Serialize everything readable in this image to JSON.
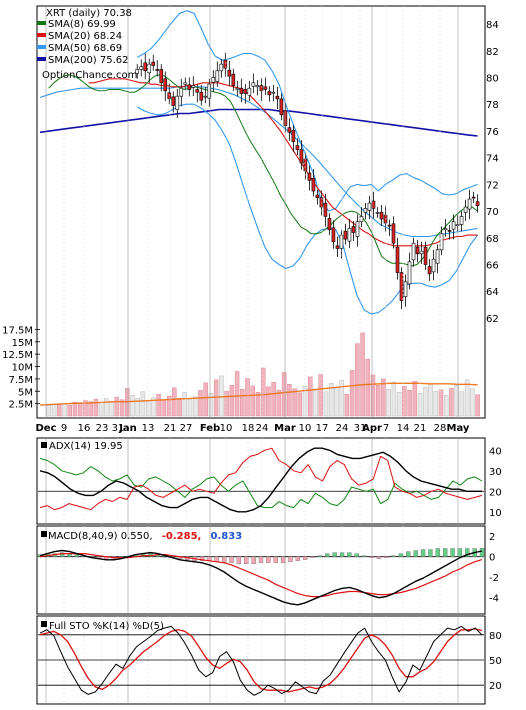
{
  "chart_data": {
    "type": "line",
    "symbol": "XRT",
    "title": "XRT (daily) 70.38",
    "source": "OptionChance.com",
    "colors": {
      "sma8": "#117711",
      "sma20": "#dd1111",
      "sma50": "#3399ee",
      "sma200": "#1111aa",
      "up_candle": "#ffffff",
      "down_candle": "#dd2222",
      "doji": "#aa66dd",
      "volume_up": "#e8e8e8",
      "volume_down": "#f0b3bd",
      "volume_ma": "#ee7722",
      "bollinger": "#ddcc33",
      "adx": "#000000",
      "plus_di": "#118811",
      "minus_di": "#dd1111",
      "macd": "#000000",
      "signal": "#dd1111",
      "hist_pos": "#66cc88",
      "hist_neg": "#f0a6b4",
      "stoch_k": "#000000",
      "stoch_d": "#dd1111"
    },
    "price_panel": {
      "legend": [
        {
          "label": "XRT (daily) 70.38",
          "color": "#000000"
        },
        {
          "label": "SMA(8) 69.99",
          "color": "#117711"
        },
        {
          "label": "SMA(20) 68.24",
          "color": "#dd1111"
        },
        {
          "label": "SMA(50) 68.69",
          "color": "#3399ee"
        },
        {
          "label": "SMA(200) 75.62",
          "color": "#1111aa"
        }
      ],
      "ylim": [
        60.5,
        85.2
      ],
      "yticks": [
        "84",
        "82",
        "80",
        "78",
        "76",
        "74",
        "72",
        "70",
        "68",
        "66",
        "64",
        "62"
      ],
      "closes": [
        80.6,
        80.8,
        80.5,
        81.0,
        80.9,
        80.6,
        79.6,
        79.0,
        78.4,
        77.9,
        78.6,
        79.2,
        79.6,
        79.1,
        79.4,
        78.9,
        78.3,
        78.6,
        79.5,
        80.0,
        80.5,
        81.0,
        80.7,
        80.1,
        79.4,
        79.2,
        78.8,
        78.8,
        79.2,
        79.6,
        79.4,
        79.0,
        79.1,
        78.7,
        78.9,
        78.4,
        77.2,
        76.4,
        75.9,
        75.2,
        74.6,
        73.6,
        73.0,
        72.3,
        71.5,
        71.0,
        70.3,
        69.6,
        68.6,
        67.7,
        67.2,
        68.2,
        67.9,
        68.7,
        68.4,
        69.2,
        69.6,
        70.2,
        70.6,
        70.2,
        69.9,
        69.4,
        69.1,
        68.9,
        67.6,
        65.4,
        63.3,
        64.7,
        66.2,
        67.6,
        66.8,
        67.0,
        66.0,
        65.3,
        66.4,
        67.1,
        68.3,
        68.7,
        68.5,
        69.2,
        69.0,
        69.6,
        70.3,
        70.9,
        71.0,
        70.4
      ],
      "sma8": [
        79.2,
        79.6,
        79.9,
        80.1,
        80.2,
        80.1,
        79.9,
        79.6,
        79.3,
        79.1,
        79.0,
        79.0,
        79.1,
        79.1,
        79.1,
        79.0,
        78.9,
        78.9,
        79.1,
        79.4,
        79.8,
        80.1,
        80.2,
        80.1,
        79.8,
        79.5,
        79.2,
        79.1,
        79.2,
        79.3,
        79.2,
        79.1,
        79.0,
        78.9,
        78.8,
        78.6,
        78.2,
        77.5,
        76.7,
        75.9,
        75.2,
        74.6,
        74.0,
        73.3,
        72.6,
        71.9,
        71.1,
        70.5,
        69.8,
        69.3,
        68.8,
        68.6,
        68.3,
        68.3,
        68.4,
        68.7,
        69.0,
        69.4,
        69.7,
        69.9,
        70.0,
        69.9,
        69.6,
        69.1,
        68.4,
        67.5,
        66.6,
        66.3,
        66.1,
        66.1,
        66.1,
        66.0,
        65.9,
        66.0,
        66.4,
        66.9,
        67.6,
        68.2,
        68.6,
        69.0,
        69.4,
        69.8,
        70.1,
        70.3,
        70.3,
        70.0
      ],
      "sma20": [
        79.6,
        79.6,
        79.7,
        79.8,
        79.9,
        79.9,
        79.9,
        79.9,
        79.8,
        79.7,
        79.6,
        79.6,
        79.5,
        79.5,
        79.4,
        79.4,
        79.3,
        79.3,
        79.3,
        79.4,
        79.4,
        79.5,
        79.6,
        79.6,
        79.6,
        79.6,
        79.5,
        79.4,
        79.3,
        79.2,
        79.0,
        78.7,
        78.3,
        77.9,
        77.5,
        77.0,
        76.5,
        76.0,
        75.4,
        74.8,
        74.2,
        73.6,
        73.0,
        72.4,
        71.8,
        71.3,
        70.8,
        70.3,
        70.0,
        69.7,
        69.4,
        69.1,
        68.8,
        68.5,
        68.3,
        68.0,
        67.8,
        67.6,
        67.5,
        67.4,
        67.4,
        67.4,
        67.4,
        67.4,
        67.4,
        67.4,
        67.5,
        67.6,
        67.8,
        67.9,
        68.0,
        68.1,
        68.1,
        68.2,
        68.2,
        68.2
      ],
      "sma50": [
        78.5,
        78.7,
        78.9,
        79.0,
        79.1,
        79.2,
        79.2,
        79.2,
        79.2,
        79.2,
        79.2,
        79.2,
        79.2,
        79.2,
        79.2,
        79.2,
        79.2,
        79.3,
        79.3,
        79.3,
        79.3,
        79.2,
        79.1,
        78.9,
        78.7,
        78.4,
        78.1,
        77.7,
        77.3,
        76.8,
        76.3,
        75.8,
        75.2,
        74.6,
        74.0,
        73.3,
        72.6,
        71.9,
        71.2,
        70.6,
        70.0,
        69.5,
        69.0,
        68.7,
        68.4,
        68.2,
        68.1,
        68.1,
        68.1,
        68.2,
        68.3,
        68.4,
        68.5,
        68.6,
        68.7
      ],
      "sma200": [
        75.9,
        76.0,
        76.1,
        76.2,
        76.3,
        76.4,
        76.5,
        76.6,
        76.7,
        76.8,
        76.9,
        77.0,
        77.1,
        77.2,
        77.3,
        77.3,
        77.4,
        77.5,
        77.6,
        77.6,
        77.6,
        77.6,
        77.6,
        77.6,
        77.5,
        77.5,
        77.4,
        77.3,
        77.2,
        77.1,
        77.0,
        76.9,
        76.8,
        76.7,
        76.6,
        76.5,
        76.4,
        76.3,
        76.2,
        76.1,
        76.0,
        75.9,
        75.8,
        75.7,
        75.62
      ],
      "bb_upper": [
        81.5,
        81.8,
        82.2,
        82.8,
        83.5,
        84.2,
        84.8,
        85.0,
        84.8,
        83.7,
        82.5,
        81.6,
        81.3,
        81.4,
        81.6,
        81.8,
        81.8,
        81.6,
        81.3,
        80.5,
        79.5,
        77.9,
        76.5,
        75.2,
        73.9,
        72.6,
        70.7,
        70.0,
        70.2,
        71.0,
        71.8,
        72.0,
        71.9,
        72.0,
        71.5,
        72.0,
        72.3,
        72.7,
        72.8,
        72.5,
        72.3,
        72.0,
        71.7,
        71.3,
        71.2,
        71.3,
        71.6,
        71.8,
        72.0
      ],
      "bb_lower": [
        77.8,
        77.5,
        77.3,
        77.2,
        77.3,
        77.6,
        77.9,
        78.0,
        78.0,
        77.7,
        77.3,
        76.8,
        76.0,
        75.0,
        73.5,
        71.8,
        70.2,
        68.7,
        67.3,
        66.4,
        66.0,
        65.7,
        65.9,
        66.5,
        67.5,
        68.2,
        68.6,
        68.7,
        68.6,
        67.5,
        65.5,
        63.7,
        62.6,
        62.3,
        62.4,
        62.8,
        63.3,
        64.0,
        64.5,
        64.6,
        64.6,
        64.4,
        64.3,
        64.5,
        64.8,
        65.5,
        66.5,
        67.5,
        68.2
      ]
    },
    "volume": {
      "yticks": [
        "17.5M",
        "15M",
        "12.5M",
        "10M",
        "7.5M",
        "5M",
        "2.5M"
      ],
      "ylim": [
        0,
        19000000
      ],
      "values": [
        2.1,
        2.4,
        2.3,
        2.6,
        2.2,
        2.8,
        2.5,
        3.1,
        2.9,
        3.4,
        2.7,
        3.5,
        3.0,
        3.8,
        3.3,
        5.6,
        4.2,
        3.6,
        4.9,
        3.1,
        3.7,
        4.4,
        3.2,
        4.0,
        5.7,
        3.6,
        4.8,
        3.3,
        3.9,
        5.2,
        6.7,
        4.6,
        7.3,
        8.1,
        5.0,
        6.2,
        9.0,
        5.4,
        7.6,
        6.1,
        4.8,
        9.7,
        5.9,
        6.8,
        5.2,
        8.8,
        6.4,
        5.5,
        4.7,
        6.0,
        7.9,
        5.1,
        8.4,
        4.9,
        6.6,
        5.7,
        7.2,
        4.4,
        9.2,
        14.6,
        16.8,
        11.5,
        8.3,
        6.2,
        7.5,
        5.4,
        6.9,
        4.8,
        6.0,
        5.2,
        7.0,
        4.6,
        5.8,
        6.4,
        5.0,
        5.3,
        4.2,
        5.6,
        6.2,
        4.9,
        7.3,
        5.5,
        4.3
      ],
      "ma": [
        2.2,
        2.3,
        2.4,
        2.5,
        2.6,
        2.6,
        2.7,
        2.8,
        2.9,
        2.9,
        3.0,
        3.1,
        3.2,
        3.3,
        3.4,
        3.5,
        3.6,
        3.7,
        3.8,
        3.9,
        4.0,
        4.1,
        4.2,
        4.3,
        4.5,
        4.7,
        4.9,
        5.1,
        5.3,
        5.5,
        5.7,
        5.9,
        6.1,
        6.3,
        6.4,
        6.5,
        6.6,
        6.6,
        6.6,
        6.6,
        6.5,
        6.5,
        6.5,
        6.4,
        6.4,
        6.3
      ]
    },
    "x_labels": [
      "Dec",
      "9",
      "16",
      "23",
      "31",
      "Jan",
      "13",
      "21",
      "27",
      "Feb",
      "10",
      "18",
      "24",
      "Mar",
      "10",
      "17",
      "24",
      "31",
      "Apr",
      "7",
      "14",
      "21",
      "28",
      "May"
    ],
    "x_bold": [
      "Dec",
      "Jan",
      "Feb",
      "Mar",
      "Apr",
      "May"
    ],
    "adx_panel": {
      "legend": "ADX(14) 19.95",
      "yticks": [
        "40",
        "30",
        "20",
        "10"
      ],
      "ylim": [
        5,
        45
      ],
      "adx": [
        30,
        29,
        27,
        24,
        21,
        19,
        18,
        18,
        20,
        23,
        25,
        24,
        22,
        20,
        17,
        15,
        13,
        12,
        12,
        14,
        16,
        17,
        17,
        15,
        13,
        11,
        10,
        10,
        11,
        13,
        17,
        22,
        27,
        32,
        36,
        39,
        41,
        41,
        40,
        38,
        37,
        36,
        36,
        37,
        38,
        39,
        37,
        34,
        30,
        27,
        25,
        24,
        23,
        22,
        21,
        21,
        20,
        20,
        20
      ],
      "plus_di": [
        36,
        35,
        33,
        30,
        29,
        28,
        29,
        32,
        30,
        27,
        25,
        26,
        28,
        23,
        22,
        26,
        27,
        25,
        23,
        20,
        17,
        21,
        23,
        26,
        27,
        23,
        20,
        23,
        25,
        19,
        13,
        12,
        12,
        15,
        13,
        12,
        16,
        14,
        19,
        17,
        14,
        13,
        16,
        22,
        21,
        20,
        21,
        14,
        16,
        24,
        21,
        19,
        20,
        18,
        16,
        17,
        21,
        25,
        23,
        26,
        27,
        25
      ],
      "minus_di": [
        12,
        13,
        11,
        12,
        14,
        13,
        12,
        11,
        14,
        16,
        15,
        17,
        16,
        22,
        23,
        21,
        18,
        17,
        19,
        21,
        23,
        20,
        21,
        20,
        19,
        24,
        28,
        29,
        34,
        37,
        38,
        40,
        41,
        35,
        33,
        30,
        29,
        33,
        27,
        25,
        32,
        35,
        33,
        26,
        23,
        24,
        26,
        37,
        35,
        22,
        20,
        19,
        17,
        18,
        20,
        21,
        19,
        18,
        17,
        16,
        17,
        18
      ]
    },
    "macd_panel": {
      "legend_prefix": "MACD(8,40,9) 0.550,",
      "legend_signal": "-0.285,",
      "legend_hist": "0.833",
      "yticks": [
        "2",
        "0",
        "-2",
        "-4"
      ],
      "ylim": [
        -5.4,
        2.8
      ],
      "macd": [
        0.1,
        0.3,
        0.5,
        0.6,
        0.5,
        0.3,
        0.1,
        -0.1,
        -0.2,
        -0.3,
        -0.3,
        -0.2,
        0.0,
        0.2,
        0.3,
        0.4,
        0.3,
        0.1,
        -0.1,
        -0.3,
        -0.4,
        -0.5,
        -0.6,
        -0.8,
        -1.1,
        -1.5,
        -2.0,
        -2.5,
        -2.9,
        -3.2,
        -3.5,
        -3.8,
        -4.1,
        -4.4,
        -4.6,
        -4.7,
        -4.5,
        -4.2,
        -3.9,
        -3.6,
        -3.3,
        -3.1,
        -3.0,
        -3.2,
        -3.5,
        -3.8,
        -4.0,
        -3.9,
        -3.6,
        -3.2,
        -2.8,
        -2.4,
        -2.1,
        -1.7,
        -1.3,
        -0.9,
        -0.5,
        -0.1,
        0.2,
        0.4,
        0.55
      ],
      "signal": [
        0.0,
        0.1,
        0.2,
        0.3,
        0.3,
        0.3,
        0.3,
        0.2,
        0.1,
        0.0,
        -0.1,
        -0.1,
        -0.1,
        0.0,
        0.1,
        0.1,
        0.2,
        0.2,
        0.1,
        0.0,
        -0.1,
        -0.2,
        -0.3,
        -0.4,
        -0.5,
        -0.6,
        -0.8,
        -1.1,
        -1.4,
        -1.7,
        -2.0,
        -2.3,
        -2.7,
        -3.0,
        -3.3,
        -3.6,
        -3.8,
        -3.9,
        -3.9,
        -3.8,
        -3.6,
        -3.5,
        -3.4,
        -3.4,
        -3.5,
        -3.6,
        -3.7,
        -3.7,
        -3.6,
        -3.5,
        -3.3,
        -3.1,
        -2.8,
        -2.5,
        -2.2,
        -1.9,
        -1.5,
        -1.2,
        -0.8,
        -0.5,
        -0.285
      ],
      "hist": [
        0.2,
        0.3,
        0.3,
        0.4,
        0.3,
        0.2,
        0.1,
        -0.1,
        -0.2,
        -0.3,
        -0.3,
        -0.2,
        0.0,
        0.2,
        0.3,
        0.3,
        0.2,
        0.0,
        -0.1,
        -0.2,
        -0.3,
        -0.4,
        -0.4,
        -0.4,
        -0.5,
        -0.6,
        -0.6,
        -0.7,
        -0.7,
        -0.7,
        -0.6,
        -0.6,
        -0.6,
        -0.6,
        -0.5,
        -0.4,
        -0.3,
        -0.1,
        0.1,
        0.3,
        0.4,
        0.4,
        0.4,
        0.3,
        0.1,
        -0.1,
        -0.2,
        -0.1,
        0.1,
        0.3,
        0.5,
        0.6,
        0.7,
        0.7,
        0.8,
        0.8,
        0.8,
        0.8,
        0.8,
        0.8,
        0.833
      ]
    },
    "sto_panel": {
      "legend": "Full STO %K(14) %D(5)",
      "yticks": [
        "80",
        "50",
        "20"
      ],
      "ylim": [
        0,
        100
      ],
      "k": [
        82,
        86,
        79,
        60,
        42,
        28,
        14,
        9,
        12,
        22,
        34,
        45,
        40,
        55,
        66,
        72,
        78,
        85,
        88,
        90,
        82,
        70,
        55,
        38,
        30,
        35,
        54,
        60,
        48,
        26,
        14,
        8,
        12,
        20,
        16,
        10,
        14,
        24,
        18,
        12,
        10,
        25,
        32,
        45,
        58,
        70,
        82,
        88,
        72,
        60,
        50,
        30,
        12,
        24,
        44,
        38,
        55,
        72,
        80,
        88,
        86,
        90,
        84,
        88,
        80
      ],
      "d": [
        80,
        82,
        84,
        80,
        72,
        58,
        42,
        28,
        18,
        15,
        20,
        28,
        38,
        44,
        52,
        60,
        66,
        72,
        79,
        84,
        86,
        84,
        78,
        66,
        53,
        44,
        40,
        46,
        51,
        48,
        38,
        24,
        16,
        14,
        14,
        14,
        12,
        14,
        16,
        18,
        16,
        18,
        22,
        30,
        40,
        52,
        64,
        76,
        80,
        76,
        68,
        56,
        40,
        30,
        30,
        36,
        40,
        48,
        60,
        72,
        80,
        86,
        86,
        87,
        85
      ]
    }
  }
}
